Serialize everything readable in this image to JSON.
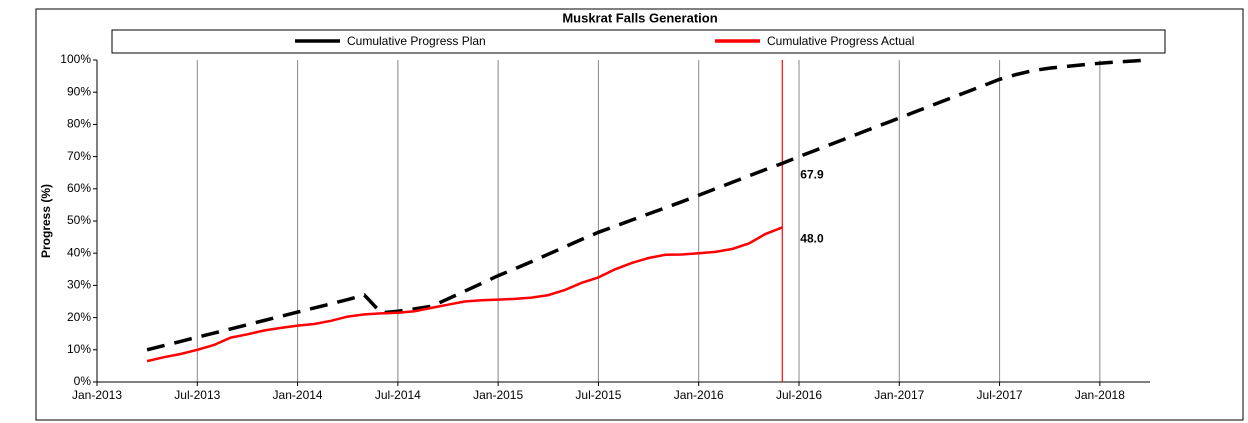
{
  "chart_data": {
    "type": "line",
    "title": "Muskrat Falls Generation",
    "ylabel": "Progress (%)",
    "x": [
      "Apr-2013",
      "May-2013",
      "Jun-2013",
      "Jul-2013",
      "Aug-2013",
      "Sep-2013",
      "Oct-2013",
      "Nov-2013",
      "Dec-2013",
      "Jan-2014",
      "Feb-2014",
      "Mar-2014",
      "Apr-2014",
      "May-2014",
      "Jun-2014",
      "Jul-2014",
      "Aug-2014",
      "Sep-2014",
      "Oct-2014",
      "Nov-2014",
      "Dec-2014",
      "Jan-2015",
      "Feb-2015",
      "Mar-2015",
      "Apr-2015",
      "May-2015",
      "Jun-2015",
      "Jul-2015",
      "Aug-2015",
      "Sep-2015",
      "Oct-2015",
      "Nov-2015",
      "Dec-2015",
      "Jan-2016",
      "Feb-2016",
      "Mar-2016",
      "Apr-2016",
      "May-2016",
      "Jun-2016",
      "Jul-2016",
      "Aug-2016",
      "Sep-2016",
      "Oct-2016",
      "Nov-2016",
      "Dec-2016",
      "Jan-2017",
      "Feb-2017",
      "Mar-2017",
      "Apr-2017",
      "May-2017",
      "Jun-2017",
      "Jul-2017",
      "Aug-2017",
      "Sep-2017",
      "Oct-2017",
      "Nov-2017",
      "Dec-2017",
      "Jan-2018",
      "Feb-2018",
      "Mar-2018",
      "Apr-2018"
    ],
    "series": [
      {
        "name": "Cumulative Progress Plan",
        "color": "#000000",
        "dash": true,
        "values": [
          10,
          11.3,
          12.6,
          13.9,
          15.2,
          16.5,
          17.8,
          19.1,
          20.4,
          21.7,
          23,
          24.3,
          25.6,
          27,
          21.5,
          22,
          22.7,
          23.5,
          25.8,
          28.2,
          30.6,
          33,
          35.2,
          37.4,
          39.7,
          42,
          44.3,
          46.5,
          48.4,
          50.3,
          52.2,
          54.1,
          56,
          58,
          60,
          62,
          64,
          66,
          67.9,
          70,
          72,
          74,
          76,
          78,
          80,
          82,
          84,
          86,
          88,
          90,
          92,
          94,
          95.5,
          96.7,
          97.5,
          98,
          98.5,
          99,
          99.4,
          99.7,
          100
        ]
      },
      {
        "name": "Cumulative Progress Actual",
        "color": "#ff0000",
        "dash": false,
        "values": [
          6.5,
          7.7,
          8.7,
          10,
          11.5,
          13.8,
          14.8,
          16,
          16.8,
          17.5,
          18,
          19,
          20.3,
          21,
          21.3,
          21.5,
          22,
          23,
          24,
          25,
          25.4,
          25.6,
          25.8,
          26.2,
          27,
          28.6,
          30.8,
          32.5,
          35,
          37,
          38.5,
          39.5,
          39.6,
          40,
          40.4,
          41.3,
          43,
          46,
          48,
          null,
          null,
          null,
          null,
          null,
          null,
          null,
          null,
          null,
          null,
          null,
          null,
          null,
          null,
          null,
          null,
          null,
          null,
          null,
          null,
          null,
          null
        ]
      }
    ],
    "annotations": [
      {
        "x": "Jun-2016",
        "y": 67.9,
        "text": "67.9"
      },
      {
        "x": "Jun-2016",
        "y": 48,
        "text": "48.0"
      }
    ],
    "vline": {
      "x": "Jun-2016",
      "color": "#ff0000"
    },
    "xlim": [
      "Jan-2013",
      "Apr-2018"
    ],
    "xticks": [
      "Jan-2013",
      "Jul-2013",
      "Jan-2014",
      "Jul-2014",
      "Jan-2015",
      "Jul-2015",
      "Jan-2016",
      "Jul-2016",
      "Jan-2017",
      "Jul-2017",
      "Jan-2018"
    ],
    "ylim": [
      0,
      100
    ],
    "yticks": [
      {
        "value": 0,
        "label": "0%"
      },
      {
        "value": 10,
        "label": "10%"
      },
      {
        "value": 20,
        "label": "20%"
      },
      {
        "value": 30,
        "label": "30%"
      },
      {
        "value": 40,
        "label": "40%"
      },
      {
        "value": 50,
        "label": "50%"
      },
      {
        "value": 60,
        "label": "60%"
      },
      {
        "value": 70,
        "label": "70%"
      },
      {
        "value": 80,
        "label": "80%"
      },
      {
        "value": 90,
        "label": "90%"
      },
      {
        "value": 100,
        "label": "100%"
      }
    ],
    "grid": "x",
    "legend": "top"
  }
}
